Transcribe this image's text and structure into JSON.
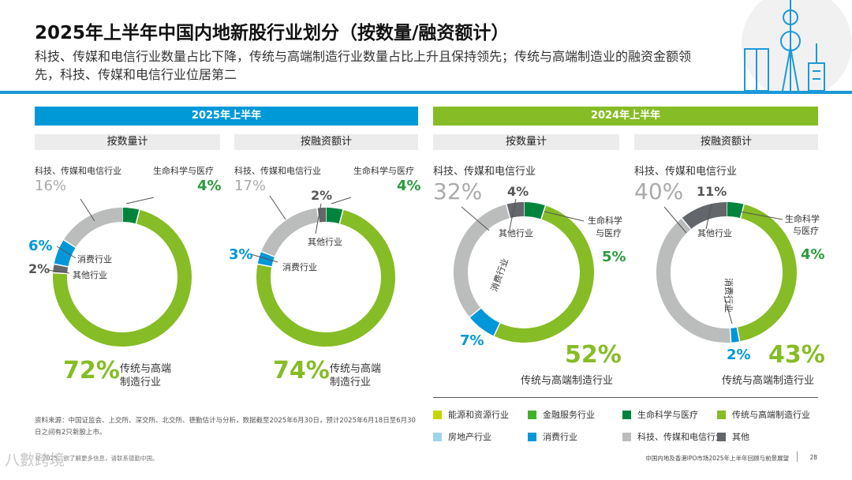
{
  "header": {
    "title": "2025年上半年中国内地新股行业划分（按数量/融资额计）",
    "subtitle": "科技、传媒和电信行业数量占比下降，传统与高端制造行业数量占比上升且保持领先；传统与高端制造业的融资金额领先，科技、传媒和电信行业位居第二"
  },
  "period_headers": {
    "h2025": "2025年上半年",
    "h2024": "2024年上半年"
  },
  "sub_headers": {
    "by_count": "按数量计",
    "by_amount": "按融资额计"
  },
  "labels": {
    "tmt": "科技、传媒和电信行业",
    "life": "生命科学与医疗",
    "life_a": "生命科学",
    "life_b": "与医疗",
    "consumer": "消费行业",
    "other": "其他行业",
    "mfg_a": "传统与高端",
    "mfg_b": "制造行业",
    "mfg_full": "传统与高端制造行业"
  },
  "colors": {
    "energy": "#c4d600",
    "financial": "#43b02a",
    "life": "#00843d",
    "manufacturing": "#86bc25",
    "real_estate": "#9dd4f0",
    "consumer": "#0097d9",
    "tmt": "#bbbcbc",
    "other": "#63666a"
  },
  "chart_data": [
    {
      "type": "pie",
      "title": "2025年上半年 按数量计",
      "categories": [
        "生命科学与医疗",
        "传统与高端制造行业",
        "其他",
        "消费行业",
        "科技、传媒和电信行业"
      ],
      "values": [
        4,
        72,
        2,
        6,
        16
      ],
      "value_labels": [
        "4%",
        "72%",
        "2%",
        "6%",
        "16%"
      ]
    },
    {
      "type": "pie",
      "title": "2025年上半年 按融资额计",
      "categories": [
        "生命科学与医疗",
        "传统与高端制造行业",
        "消费行业",
        "科技、传媒和电信行业",
        "其他"
      ],
      "values": [
        4,
        74,
        3,
        17,
        2
      ],
      "value_labels": [
        "4%",
        "74%",
        "3%",
        "17%",
        "2%"
      ]
    },
    {
      "type": "pie",
      "title": "2024年上半年 按数量计",
      "categories": [
        "生命科学与医疗",
        "传统与高端制造行业",
        "消费行业",
        "科技、传媒和电信行业",
        "其他"
      ],
      "values": [
        5,
        52,
        7,
        32,
        4
      ],
      "value_labels": [
        "5%",
        "52%",
        "7%",
        "32%",
        "4%"
      ]
    },
    {
      "type": "pie",
      "title": "2024年上半年 按融资额计",
      "categories": [
        "生命科学与医疗",
        "传统与高端制造行业",
        "消费行业",
        "科技、传媒和电信行业",
        "其他"
      ],
      "values": [
        4,
        43,
        2,
        40,
        11
      ],
      "value_labels": [
        "4%",
        "43%",
        "2%",
        "40%",
        "11%"
      ]
    }
  ],
  "legend": [
    {
      "label": "能源和资源行业",
      "color": "#c4d600"
    },
    {
      "label": "金融服务行业",
      "color": "#43b02a"
    },
    {
      "label": "生命科学与医疗",
      "color": "#00843d"
    },
    {
      "label": "传统与高端制造行业",
      "color": "#86bc25"
    },
    {
      "label": "房地产行业",
      "color": "#9dd4f0"
    },
    {
      "label": "消费行业",
      "color": "#0097d9"
    },
    {
      "label": "科技、传媒和电信行业",
      "color": "#bbbcbc"
    },
    {
      "label": "其他",
      "color": "#63666a"
    }
  ],
  "footer": {
    "source": "资料来源：中国证监会、上交所、深交所、北交所、德勤估计与分析，数据截至2025年6月30日，预计2025年6月18日至6月30日之间有2只新股上市。",
    "copyright": "© 2025。欲了解更多信息，请联系德勤中国。",
    "report": "中国内地及香港IPO市场2025年上半年回顾与前景展望",
    "page": "28",
    "watermark": "八數跨境"
  }
}
